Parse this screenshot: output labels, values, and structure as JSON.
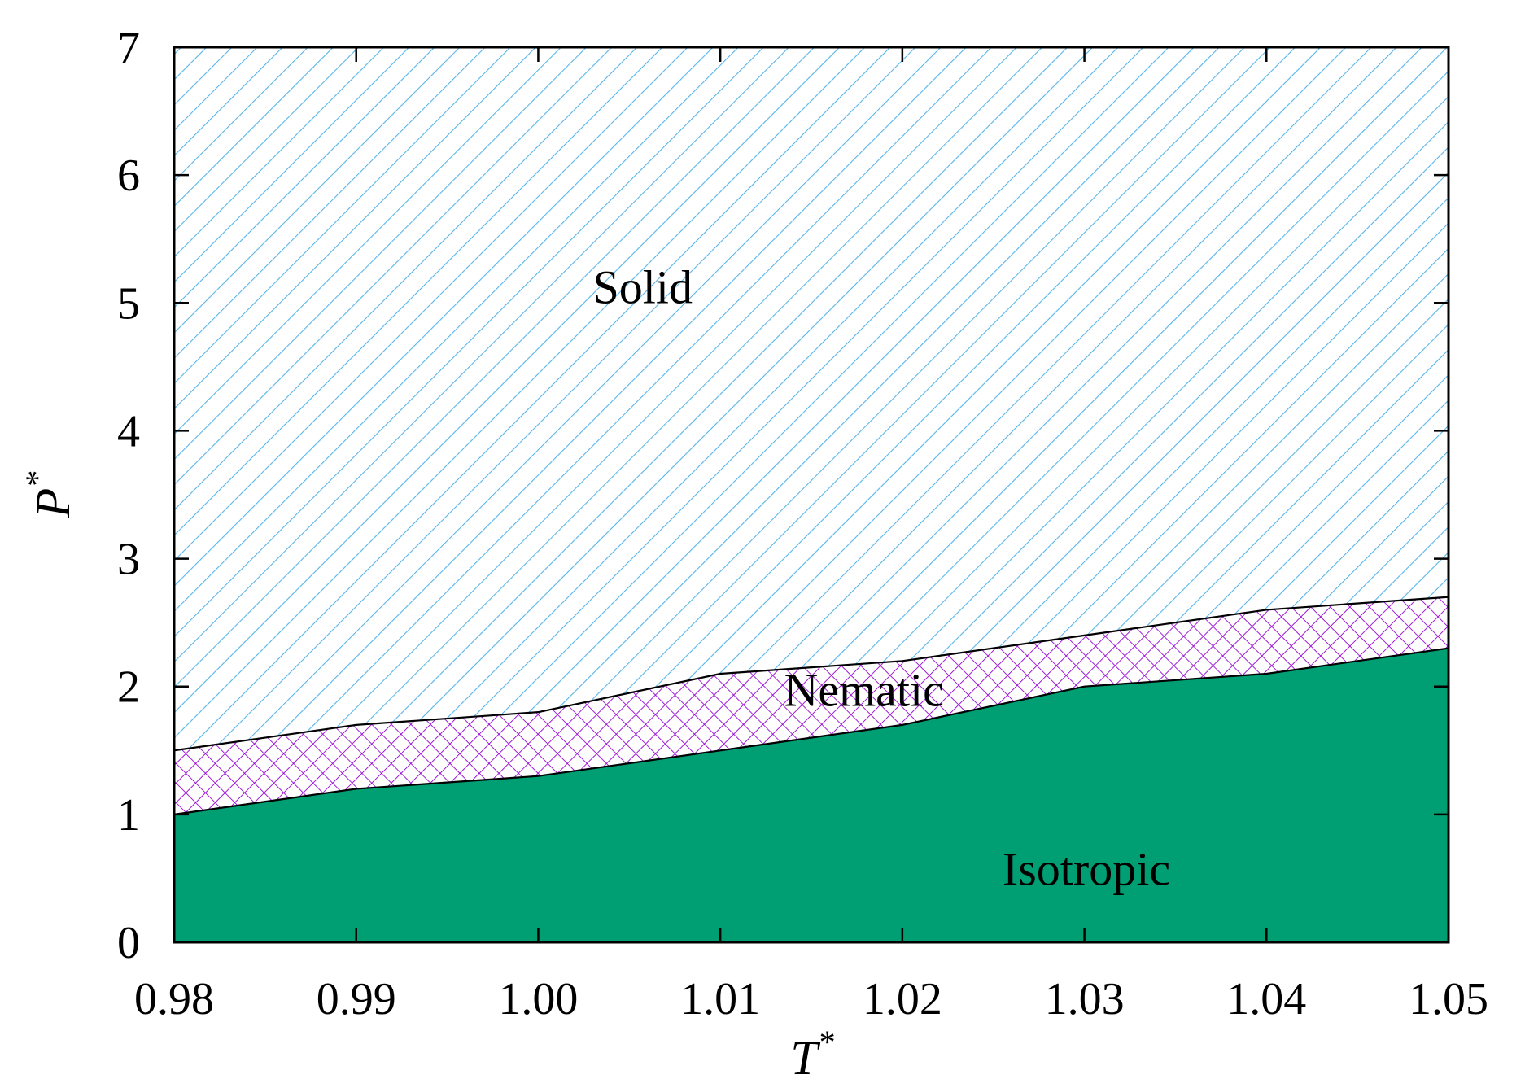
{
  "chart_data": {
    "type": "area",
    "x": [
      0.98,
      0.99,
      1.0,
      1.01,
      1.02,
      1.03,
      1.04,
      1.05
    ],
    "series": [
      {
        "name": "Isotropic",
        "values": [
          1.0,
          1.2,
          1.3,
          1.5,
          1.7,
          2.0,
          2.1,
          2.3
        ],
        "color": "#009e73",
        "fill": "solid"
      },
      {
        "name": "Nematic",
        "values": [
          1.5,
          1.7,
          1.8,
          2.1,
          2.2,
          2.4,
          2.6,
          2.7
        ],
        "color": "#9400d3",
        "fill": "crosshatch"
      },
      {
        "name": "Solid",
        "values": [
          7,
          7,
          7,
          7,
          7,
          7,
          7,
          7
        ],
        "color": "#56b4e9",
        "fill": "diagonal-hatch"
      }
    ],
    "region_labels": [
      {
        "text": "Solid",
        "x": 1.003,
        "y": 5.0
      },
      {
        "text": "Nematic",
        "x": 1.0135,
        "y": 1.85
      },
      {
        "text": "Isotropic",
        "x": 1.0255,
        "y": 0.45
      }
    ],
    "xlabel": {
      "main": "T",
      "sup": "*"
    },
    "ylabel": {
      "main": "P",
      "sup": "*"
    },
    "xlim": [
      0.98,
      1.05
    ],
    "ylim": [
      0,
      7
    ],
    "xticks": [
      0.98,
      0.99,
      1.0,
      1.01,
      1.02,
      1.03,
      1.04,
      1.05
    ],
    "xtick_labels": [
      "0.98",
      "0.99",
      "1.00",
      "1.01",
      "1.02",
      "1.03",
      "1.04",
      "1.05"
    ],
    "yticks": [
      0,
      1,
      2,
      3,
      4,
      5,
      6,
      7
    ],
    "ytick_labels": [
      "0",
      "1",
      "2",
      "3",
      "4",
      "5",
      "6",
      "7"
    ],
    "grid": false,
    "legend": "none"
  }
}
